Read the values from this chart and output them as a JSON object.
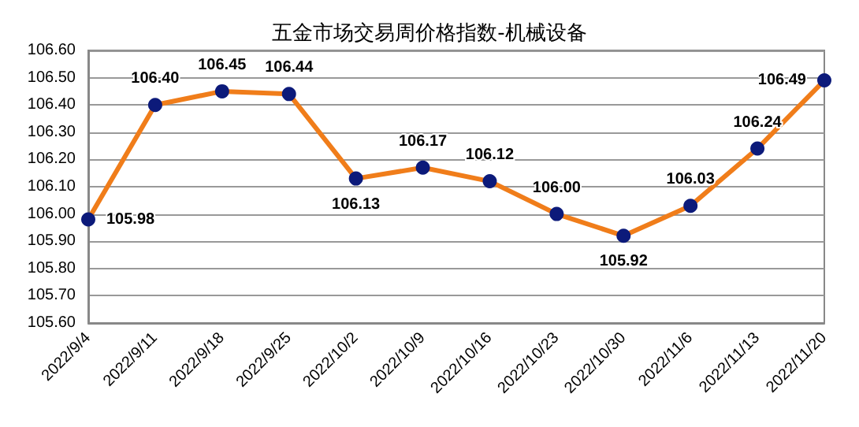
{
  "chart_data": {
    "type": "line",
    "title": "五金市场交易周价格指数-机械设备",
    "categories": [
      "2022/9/4",
      "2022/9/11",
      "2022/9/18",
      "2022/9/25",
      "2022/10/2",
      "2022/10/9",
      "2022/10/16",
      "2022/10/23",
      "2022/10/30",
      "2022/11/6",
      "2022/11/13",
      "2022/11/20"
    ],
    "series": [
      {
        "color": "#f07d1a",
        "values": [
          105.98,
          106.4,
          106.45,
          106.44,
          106.13,
          106.17,
          106.12,
          106.0,
          105.92,
          106.03,
          106.24,
          106.49
        ],
        "value_labels": [
          "105.98",
          "106.40",
          "106.45",
          "106.44",
          "106.13",
          "106.17",
          "106.12",
          "106.00",
          "105.92",
          "106.03",
          "106.24",
          "106.49"
        ]
      }
    ],
    "ylim": [
      105.6,
      106.6
    ],
    "yticks": [
      {
        "value": 105.6,
        "label": "105.60"
      },
      {
        "value": 105.7,
        "label": "105.70"
      },
      {
        "value": 105.8,
        "label": "105.80"
      },
      {
        "value": 105.9,
        "label": "105.90"
      },
      {
        "value": 106.0,
        "label": "106.00"
      },
      {
        "value": 106.1,
        "label": "106.10"
      },
      {
        "value": 106.2,
        "label": "106.20"
      },
      {
        "value": 106.3,
        "label": "106.30"
      },
      {
        "value": 106.4,
        "label": "106.40"
      },
      {
        "value": 106.5,
        "label": "106.50"
      },
      {
        "value": 106.6,
        "label": "106.60"
      }
    ],
    "grid": "y",
    "marker": "circle"
  }
}
